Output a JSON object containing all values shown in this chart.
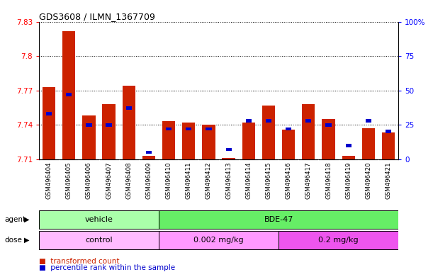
{
  "title": "GDS3608 / ILMN_1367709",
  "samples": [
    "GSM496404",
    "GSM496405",
    "GSM496406",
    "GSM496407",
    "GSM496408",
    "GSM496409",
    "GSM496410",
    "GSM496411",
    "GSM496412",
    "GSM496413",
    "GSM496414",
    "GSM496415",
    "GSM496416",
    "GSM496417",
    "GSM496418",
    "GSM496419",
    "GSM496420",
    "GSM496421"
  ],
  "transformed_count": [
    7.773,
    7.822,
    7.748,
    7.758,
    7.774,
    7.713,
    7.743,
    7.742,
    7.74,
    7.711,
    7.742,
    7.757,
    7.736,
    7.758,
    7.745,
    7.713,
    7.737,
    7.733
  ],
  "percentile_rank": [
    33,
    47,
    25,
    25,
    37,
    5,
    22,
    22,
    22,
    7,
    28,
    28,
    22,
    28,
    25,
    10,
    28,
    20
  ],
  "ymin": 7.71,
  "ymax": 7.83,
  "yticks": [
    7.83,
    7.8,
    7.77,
    7.74,
    7.71
  ],
  "right_yticks": [
    100,
    75,
    50,
    25,
    0
  ],
  "bar_color": "#cc2200",
  "percentile_color": "#0000cc",
  "agent_vehicle_count": 6,
  "agent_bde47_count": 12,
  "dose_control_count": 6,
  "dose_002_count": 6,
  "dose_02_count": 6,
  "agent_vehicle_label": "vehicle",
  "agent_bde47_label": "BDE-47",
  "dose_control_label": "control",
  "dose_002_label": "0.002 mg/kg",
  "dose_02_label": "0.2 mg/kg",
  "agent_vehicle_color": "#aaffaa",
  "agent_bde47_color": "#66ee66",
  "dose_control_color": "#ffbbff",
  "dose_002_color": "#ff99ff",
  "dose_02_color": "#ee55ee",
  "legend_red_label": "transformed count",
  "legend_blue_label": "percentile rank within the sample",
  "xtick_bg_color": "#cccccc",
  "plot_bg_color": "#ffffff"
}
